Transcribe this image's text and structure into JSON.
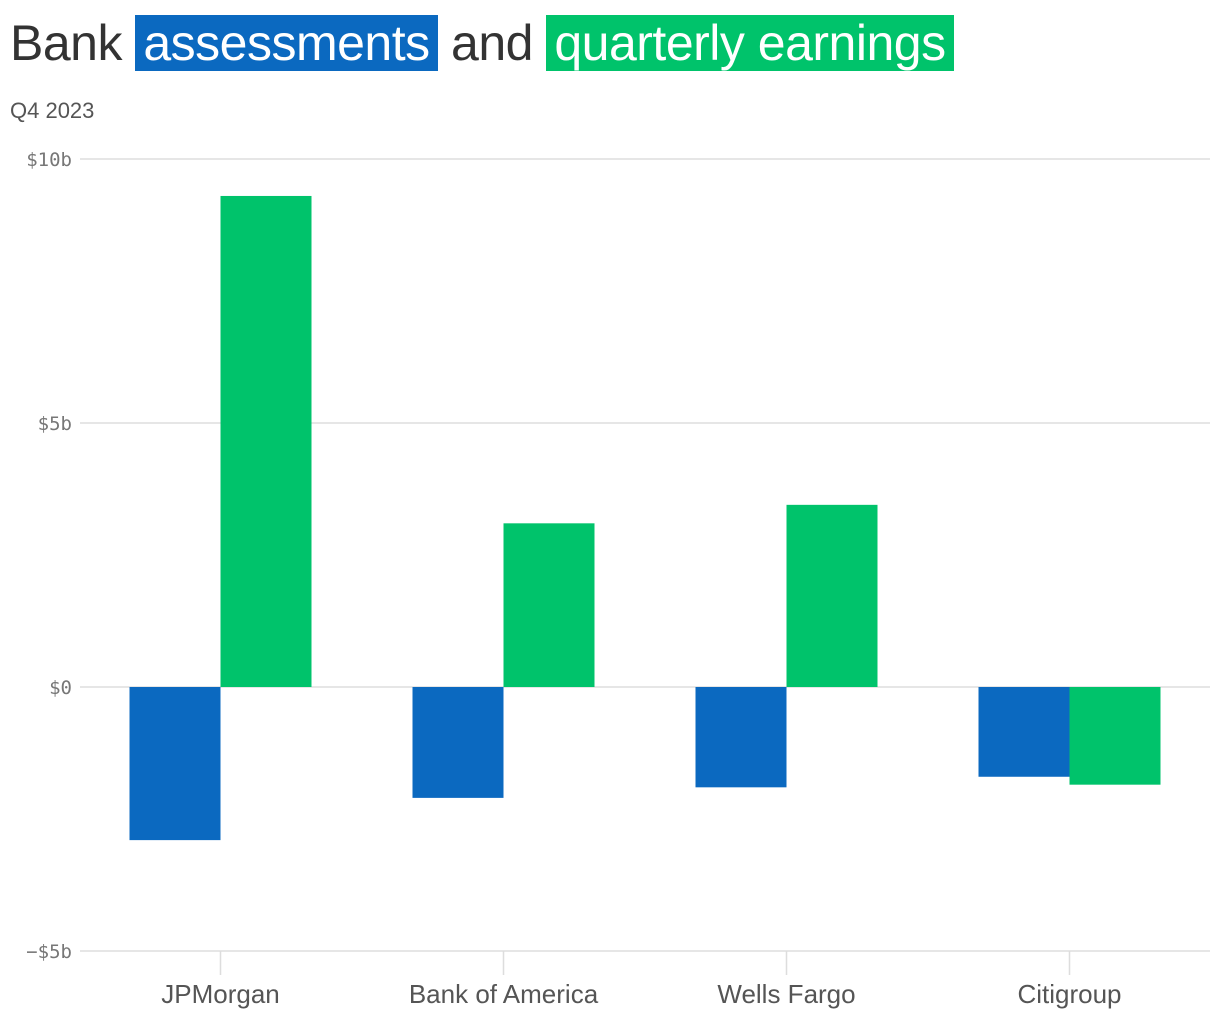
{
  "header": {
    "title_part1": "Bank ",
    "title_highlight1": "assessments",
    "title_part2": " and ",
    "title_highlight2": "quarterly earnings",
    "subtitle": "Q4 2023"
  },
  "colors": {
    "assessments": "#0b69c0",
    "earnings": "#00c36b",
    "grid": "#dddddd",
    "axis_text": "#777777"
  },
  "chart_data": {
    "type": "bar",
    "categories": [
      "JPMorgan",
      "Bank of America",
      "Wells Fargo",
      "Citigroup"
    ],
    "series": [
      {
        "name": "assessments",
        "values": [
          -2.9,
          -2.1,
          -1.9,
          -1.7
        ]
      },
      {
        "name": "quarterly earnings",
        "values": [
          9.3,
          3.1,
          3.45,
          -1.85
        ]
      }
    ],
    "y_ticks": [
      10,
      5,
      0,
      -5
    ],
    "y_tick_labels": [
      "$10b",
      "$5b",
      "$0",
      "−$5b"
    ],
    "ylim": [
      -5,
      10
    ],
    "grid": true,
    "xlabel": "",
    "ylabel": ""
  }
}
